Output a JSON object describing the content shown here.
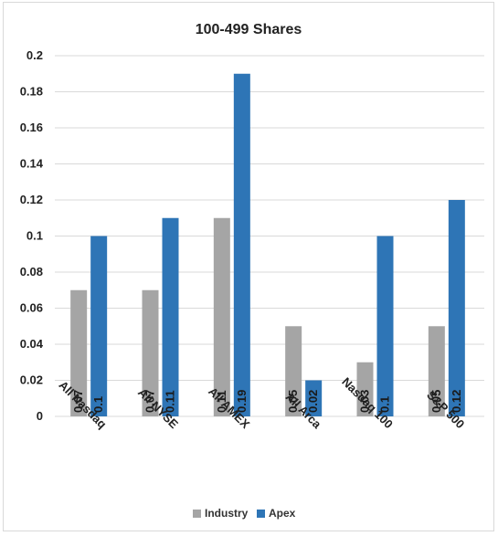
{
  "chart_data": {
    "type": "bar",
    "title": "100-499 Shares",
    "categories": [
      "All Nasdaq",
      "All NYSE",
      "All AMEX",
      "All Arca",
      "Nasdaq 100",
      "S&P 500"
    ],
    "series": [
      {
        "name": "Industry",
        "values": [
          0.07,
          0.07,
          0.11,
          0.05,
          0.03,
          0.05
        ],
        "color": "#a5a5a5"
      },
      {
        "name": "Apex",
        "values": [
          0.1,
          0.11,
          0.19,
          0.02,
          0.1,
          0.12
        ],
        "color": "#2e75b6"
      }
    ],
    "data_labels": [
      [
        "0.07",
        "0.07",
        "0.11",
        "0.05",
        "0.03",
        "0.05"
      ],
      [
        "0.1",
        "0.11",
        "0.19",
        "0.02",
        "0.1",
        "0.12"
      ]
    ],
    "ylim": [
      0,
      0.2
    ],
    "yticks": [
      0,
      0.02,
      0.04,
      0.06,
      0.08,
      0.1,
      0.12,
      0.14,
      0.16,
      0.18,
      0.2
    ],
    "ytick_labels": [
      "0",
      "0.02",
      "0.04",
      "0.06",
      "0.08",
      "0.1",
      "0.12",
      "0.14",
      "0.16",
      "0.18",
      "0.2"
    ],
    "grid": true,
    "legend": "bottom"
  }
}
